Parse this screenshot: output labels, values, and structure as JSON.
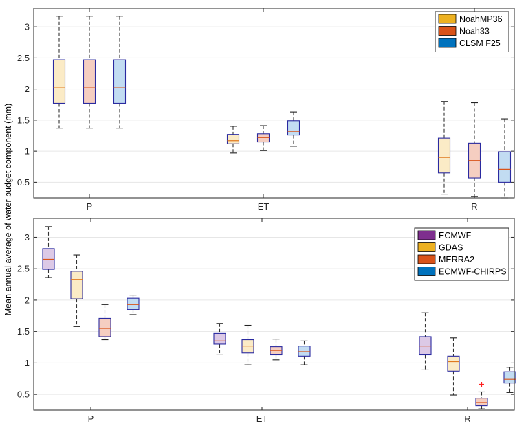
{
  "ylabel": "Mean annual average of water budget component (mm)",
  "chart_data": [
    {
      "type": "boxplot",
      "panel": "top",
      "categories": [
        "P",
        "ET",
        "R"
      ],
      "ylim": [
        0.25,
        3.3
      ],
      "yticks": [
        0.5,
        1,
        1.5,
        2,
        2.5,
        3
      ],
      "ytick_labels": [
        "0.5",
        "1",
        "1.5",
        "2",
        "2.5",
        "3"
      ],
      "grid": true,
      "legend_position": "top-right",
      "series": [
        {
          "name": "NoahMP36",
          "color": "#EDB120",
          "fill": "#FBEBC6",
          "median_color": "#E07A1F",
          "boxes": [
            {
              "whisker_low": 1.37,
              "q1": 1.77,
              "median": 2.03,
              "q3": 2.47,
              "whisker_high": 3.17
            },
            {
              "whisker_low": 0.97,
              "q1": 1.12,
              "median": 1.17,
              "q3": 1.27,
              "whisker_high": 1.4
            },
            {
              "whisker_low": 0.31,
              "q1": 0.65,
              "median": 0.9,
              "q3": 1.21,
              "whisker_high": 1.8
            }
          ]
        },
        {
          "name": "Noah33",
          "color": "#D95319",
          "fill": "#F5CEC1",
          "median_color": "#D95319",
          "boxes": [
            {
              "whisker_low": 1.37,
              "q1": 1.77,
              "median": 2.03,
              "q3": 2.47,
              "whisker_high": 3.17
            },
            {
              "whisker_low": 1.01,
              "q1": 1.15,
              "median": 1.22,
              "q3": 1.28,
              "whisker_high": 1.41
            },
            {
              "whisker_low": 0.27,
              "q1": 0.57,
              "median": 0.85,
              "q3": 1.13,
              "whisker_high": 1.78
            }
          ]
        },
        {
          "name": "CLSM F25",
          "color": "#0072BD",
          "fill": "#C2DCF2",
          "median_color": "#D95319",
          "boxes": [
            {
              "whisker_low": 1.37,
              "q1": 1.77,
              "median": 2.03,
              "q3": 2.47,
              "whisker_high": 3.17
            },
            {
              "whisker_low": 1.08,
              "q1": 1.26,
              "median": 1.32,
              "q3": 1.49,
              "whisker_high": 1.63
            },
            {
              "whisker_low": 0.25,
              "q1": 0.5,
              "median": 0.71,
              "q3": 0.99,
              "whisker_high": 1.52
            }
          ]
        }
      ]
    },
    {
      "type": "boxplot",
      "panel": "bottom",
      "categories": [
        "P",
        "ET",
        "R"
      ],
      "ylim": [
        0.25,
        3.3
      ],
      "yticks": [
        0.5,
        1,
        1.5,
        2,
        2.5,
        3
      ],
      "ytick_labels": [
        "0.5",
        "1",
        "1.5",
        "2",
        "2.5",
        "3"
      ],
      "grid": true,
      "legend_position": "top-right",
      "series": [
        {
          "name": "ECMWF",
          "color": "#7E2F8E",
          "fill": "#DCC9E6",
          "median_color": "#D95319",
          "boxes": [
            {
              "whisker_low": 2.36,
              "q1": 2.49,
              "median": 2.65,
              "q3": 2.82,
              "whisker_high": 3.17
            },
            {
              "whisker_low": 1.14,
              "q1": 1.3,
              "median": 1.35,
              "q3": 1.47,
              "whisker_high": 1.63
            },
            {
              "whisker_low": 0.89,
              "q1": 1.13,
              "median": 1.27,
              "q3": 1.42,
              "whisker_high": 1.8
            }
          ]
        },
        {
          "name": "GDAS",
          "color": "#EDB120",
          "fill": "#FBEBC6",
          "median_color": "#E07A1F",
          "boxes": [
            {
              "whisker_low": 1.58,
              "q1": 2.02,
              "median": 2.33,
              "q3": 2.46,
              "whisker_high": 2.72
            },
            {
              "whisker_low": 0.97,
              "q1": 1.16,
              "median": 1.27,
              "q3": 1.37,
              "whisker_high": 1.6
            },
            {
              "whisker_low": 0.49,
              "q1": 0.87,
              "median": 1.02,
              "q3": 1.11,
              "whisker_high": 1.4
            }
          ]
        },
        {
          "name": "MERRA2",
          "color": "#D95319",
          "fill": "#F5CEC1",
          "median_color": "#D95319",
          "boxes": [
            {
              "whisker_low": 1.37,
              "q1": 1.42,
              "median": 1.55,
              "q3": 1.71,
              "whisker_high": 1.93
            },
            {
              "whisker_low": 1.05,
              "q1": 1.13,
              "median": 1.2,
              "q3": 1.26,
              "whisker_high": 1.38
            },
            {
              "whisker_low": 0.27,
              "q1": 0.32,
              "median": 0.37,
              "q3": 0.44,
              "whisker_high": 0.54,
              "outliers": [
                0.66
              ]
            }
          ]
        },
        {
          "name": "ECMWF-CHIRPS",
          "color": "#0072BD",
          "fill": "#C2DCF2",
          "median_color": "#D95319",
          "boxes": [
            {
              "whisker_low": 1.77,
              "q1": 1.85,
              "median": 1.93,
              "q3": 2.03,
              "whisker_high": 2.08
            },
            {
              "whisker_low": 0.97,
              "q1": 1.11,
              "median": 1.18,
              "q3": 1.27,
              "whisker_high": 1.35
            },
            {
              "whisker_low": 0.53,
              "q1": 0.68,
              "median": 0.74,
              "q3": 0.86,
              "whisker_high": 0.93
            }
          ]
        }
      ]
    }
  ]
}
